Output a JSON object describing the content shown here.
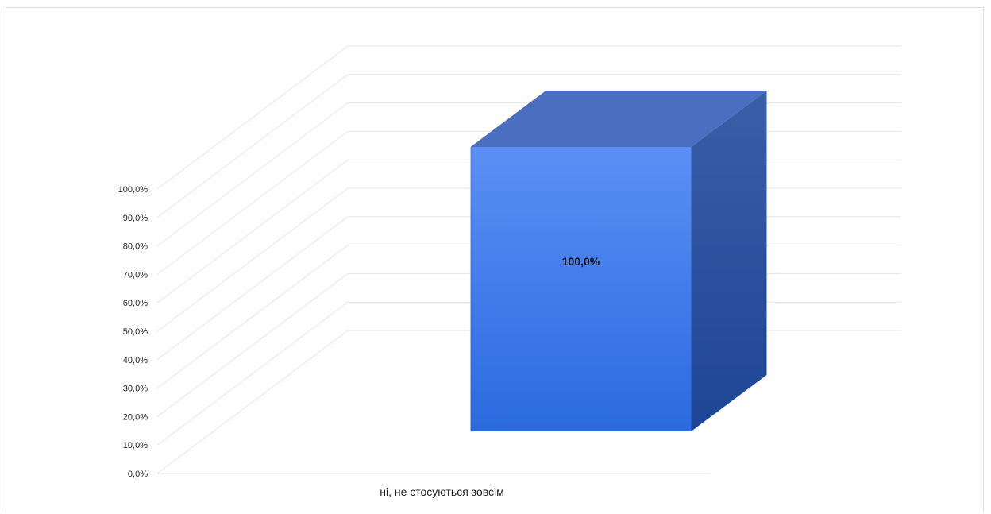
{
  "chart_data": {
    "type": "bar",
    "three_d": true,
    "categories": [
      "ні, не стосуються зовсім"
    ],
    "values": [
      100.0
    ],
    "data_labels": [
      "100,0%"
    ],
    "ylim": [
      0,
      100
    ],
    "y_ticks": [
      "0,0%",
      "10,0%",
      "20,0%",
      "30,0%",
      "40,0%",
      "50,0%",
      "60,0%",
      "70,0%",
      "80,0%",
      "90,0%",
      "100,0%"
    ],
    "grid": true,
    "legend": "none",
    "colors": {
      "front_top": "#5b8ff5",
      "front_bottom": "#2a6ae0",
      "side_top": "#3a5fa8",
      "side_bottom": "#1e4595",
      "top": "#4a6fc0",
      "gridline": "#e6e6e6"
    }
  }
}
